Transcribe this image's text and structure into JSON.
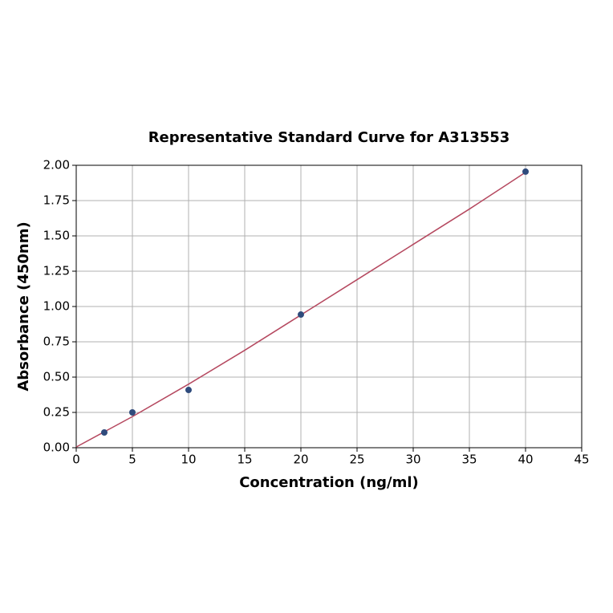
{
  "chart_data": {
    "type": "scatter",
    "title": "Representative Standard Curve for A313553",
    "x_label": "Concentration (ng/ml)",
    "y_label": "Absorbance (450nm)",
    "series": [
      {
        "type": "scatter",
        "color": "#2f4b7c",
        "x": [
          2.5,
          5,
          10,
          20,
          40
        ],
        "values": [
          0.108,
          0.25,
          0.409,
          0.943,
          1.955
        ]
      },
      {
        "type": "line",
        "color": "#b5485f",
        "x": [
          0,
          5,
          10,
          15,
          20,
          25,
          30,
          35,
          40
        ],
        "values": [
          0.005,
          0.22,
          0.45,
          0.69,
          0.94,
          1.19,
          1.44,
          1.69,
          1.95
        ]
      }
    ],
    "xlim": [
      0,
      45
    ],
    "xticks": [
      0,
      5,
      10,
      15,
      20,
      25,
      30,
      35,
      40,
      45
    ],
    "ylim": [
      0,
      2
    ],
    "yticks": [
      {
        "value": 0,
        "label": "0.00"
      },
      {
        "value": 0.25,
        "label": "0.25"
      },
      {
        "value": 0.5,
        "label": "0.50"
      },
      {
        "value": 0.75,
        "label": "0.75"
      },
      {
        "value": 1,
        "label": "1.00"
      },
      {
        "value": 1.25,
        "label": "1.25"
      },
      {
        "value": 1.5,
        "label": "1.50"
      },
      {
        "value": 1.75,
        "label": "1.75"
      },
      {
        "value": 2,
        "label": "2.00"
      }
    ],
    "grid": true
  }
}
